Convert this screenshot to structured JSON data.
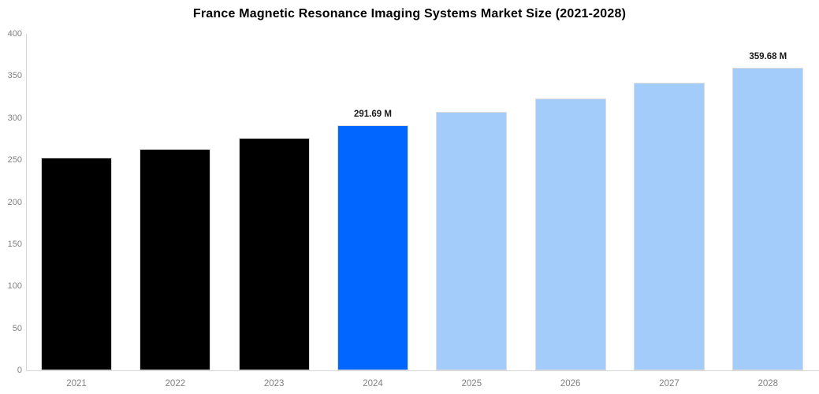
{
  "chart_data": {
    "type": "bar",
    "title": "France Magnetic Resonance Imaging Systems Market Size (2021-2028)",
    "categories": [
      "2021",
      "2022",
      "2023",
      "2024",
      "2025",
      "2026",
      "2027",
      "2028"
    ],
    "values": [
      253.4,
      262.8,
      276.8,
      291.69,
      307.2,
      322.9,
      341.5,
      359.68
    ],
    "unit": "M",
    "bar_colors": [
      "#000000",
      "#000000",
      "#000000",
      "#0066ff",
      "#a3ccfa",
      "#a3ccfa",
      "#a3ccfa",
      "#a3ccfa"
    ],
    "annotations": [
      {
        "index": 3,
        "text": "291.69 M"
      },
      {
        "index": 7,
        "text": "359.68 M"
      }
    ],
    "xlabel": "",
    "ylabel": "",
    "ylim": [
      0,
      400
    ],
    "yticks": [
      0,
      50,
      100,
      150,
      200,
      250,
      300,
      350,
      400
    ],
    "grid": false,
    "legend": null,
    "colors": {
      "background": "#ffffff",
      "axis_line": "#d6d6d6",
      "tick_text": "#808080",
      "annotation_text": "#1a1a1a",
      "title_text": "#000000",
      "historical_bar": "#000000",
      "current_bar": "#0066ff",
      "forecast_bar": "#a3ccfa"
    }
  }
}
